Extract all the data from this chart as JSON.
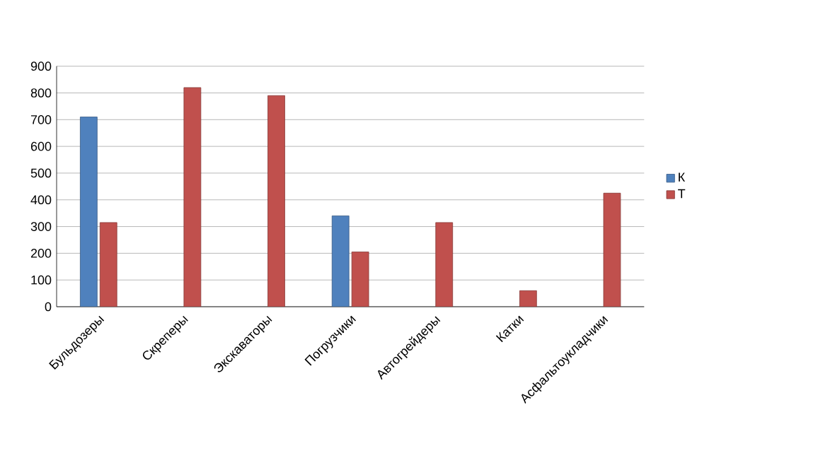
{
  "chart_data": {
    "type": "bar",
    "categories": [
      "Бульдозеры",
      "Скреперы",
      "Экскаваторы",
      "Погрузчики",
      "Автогрейдеры",
      "Катки",
      "Асфальтоукладчики"
    ],
    "series": [
      {
        "name": "К",
        "color": "#4f81bd",
        "values": [
          710,
          null,
          null,
          340,
          null,
          null,
          null
        ]
      },
      {
        "name": "Т",
        "color": "#c0504d",
        "values": [
          315,
          820,
          790,
          205,
          315,
          60,
          425
        ]
      }
    ],
    "ylim": [
      0,
      900
    ],
    "yticks": [
      0,
      100,
      200,
      300,
      400,
      500,
      600,
      700,
      800,
      900
    ],
    "grid": "y",
    "legend": "right"
  }
}
